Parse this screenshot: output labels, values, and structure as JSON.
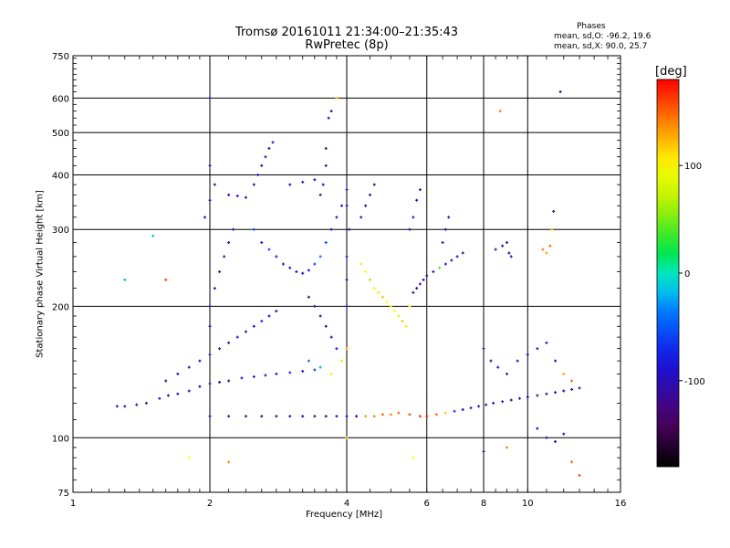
{
  "header": {
    "title_line1": "Tromsø 20161011 21:34:00–21:35:43",
    "title_line2": "RwPretec (8p)",
    "phases_heading": "Phases",
    "phases_o": "mean, sd,O:  -96.2, 19.6",
    "phases_x": "mean, sd,X:  90.0, 25.7"
  },
  "chart_data": {
    "type": "scatter",
    "title": "Tromsø 20161011 21:34:00–21:35:43 RwPretec (8p)",
    "xlabel": "Frequency [MHz]",
    "ylabel": "Stationary phase Virtual Height [km]",
    "x_scale": "log",
    "y_scale": "log",
    "xlim": [
      1,
      16
    ],
    "ylim": [
      75,
      750
    ],
    "x_ticks": [
      1,
      2,
      4,
      6,
      8,
      10,
      16
    ],
    "y_ticks": [
      75,
      100,
      200,
      300,
      400,
      500,
      600,
      750
    ],
    "grid": true,
    "colorbar": {
      "label": "[deg]",
      "range": [
        -180,
        180
      ],
      "ticks": [
        100,
        0,
        -100
      ],
      "colormap": "rainbow"
    },
    "series": [
      {
        "points": [
          [
            1.25,
            118,
            -110
          ],
          [
            1.3,
            118,
            -105
          ],
          [
            1.38,
            119,
            -100
          ],
          [
            1.45,
            120,
            -110
          ],
          [
            1.55,
            123,
            -100
          ],
          [
            1.62,
            125,
            -110
          ],
          [
            1.7,
            126,
            -95
          ],
          [
            1.8,
            128,
            -100
          ],
          [
            1.9,
            131,
            -110
          ],
          [
            2.0,
            133,
            -105
          ],
          [
            2.1,
            134,
            -95
          ],
          [
            2.2,
            135,
            -110
          ],
          [
            2.35,
            137,
            -90
          ],
          [
            2.5,
            138,
            -100
          ],
          [
            2.65,
            139,
            -80
          ],
          [
            2.8,
            140,
            -90
          ],
          [
            3.0,
            141,
            -70
          ],
          [
            3.2,
            142,
            -80
          ],
          [
            3.4,
            143,
            -60
          ],
          [
            1.6,
            135,
            -100
          ],
          [
            1.7,
            140,
            -105
          ],
          [
            1.8,
            145,
            -110
          ],
          [
            1.9,
            150,
            -100
          ],
          [
            2.0,
            155,
            -95
          ],
          [
            2.1,
            160,
            -110
          ],
          [
            2.2,
            165,
            -100
          ],
          [
            2.3,
            170,
            -80
          ],
          [
            2.4,
            175,
            -90
          ],
          [
            2.5,
            180,
            -100
          ],
          [
            2.6,
            185,
            -70
          ],
          [
            2.7,
            190,
            -85
          ],
          [
            2.8,
            195,
            -100
          ],
          [
            2.0,
            180,
            -110
          ],
          [
            2.0,
            200,
            -100
          ],
          [
            2.05,
            220,
            -105
          ],
          [
            2.1,
            240,
            -110
          ],
          [
            2.15,
            260,
            -100
          ],
          [
            2.2,
            280,
            -95
          ],
          [
            2.25,
            300,
            -100
          ],
          [
            1.95,
            320,
            -105
          ],
          [
            2.0,
            350,
            -110
          ],
          [
            2.05,
            380,
            -100
          ],
          [
            2.0,
            420,
            -105
          ],
          [
            2.0,
            600,
            -100
          ],
          [
            2.5,
            380,
            -110
          ],
          [
            2.55,
            400,
            -100
          ],
          [
            2.6,
            420,
            -105
          ],
          [
            2.65,
            440,
            -110
          ],
          [
            2.7,
            460,
            -100
          ],
          [
            2.75,
            475,
            -95
          ],
          [
            2.2,
            360,
            -110
          ],
          [
            2.3,
            358,
            -105
          ],
          [
            2.4,
            355,
            -100
          ],
          [
            2.5,
            300,
            -60
          ],
          [
            2.6,
            280,
            -80
          ],
          [
            2.7,
            270,
            -60
          ],
          [
            2.8,
            260,
            -90
          ],
          [
            2.9,
            250,
            -100
          ],
          [
            3.0,
            245,
            -110
          ],
          [
            3.1,
            240,
            -105
          ],
          [
            3.2,
            238,
            -100
          ],
          [
            3.3,
            242,
            -80
          ],
          [
            3.4,
            250,
            -60
          ],
          [
            3.5,
            260,
            -40
          ],
          [
            3.6,
            280,
            -60
          ],
          [
            3.7,
            300,
            -80
          ],
          [
            3.8,
            320,
            -100
          ],
          [
            3.9,
            340,
            -90
          ],
          [
            3.5,
            360,
            -105
          ],
          [
            3.55,
            380,
            -100
          ],
          [
            3.6,
            420,
            -110
          ],
          [
            3.6,
            460,
            -100
          ],
          [
            3.65,
            540,
            -105
          ],
          [
            3.7,
            560,
            -110
          ],
          [
            3.0,
            380,
            -100
          ],
          [
            3.2,
            385,
            -105
          ],
          [
            3.4,
            390,
            -100
          ],
          [
            3.3,
            210,
            -110
          ],
          [
            3.4,
            200,
            -100
          ],
          [
            3.5,
            190,
            -105
          ],
          [
            3.6,
            180,
            -110
          ],
          [
            3.7,
            170,
            -100
          ],
          [
            3.8,
            160,
            -95
          ],
          [
            3.3,
            150,
            -40
          ],
          [
            3.5,
            145,
            -20
          ],
          [
            3.7,
            140,
            90
          ],
          [
            3.9,
            150,
            110
          ],
          [
            4.0,
            160,
            130
          ],
          [
            2.0,
            112,
            -110
          ],
          [
            2.2,
            112,
            -105
          ],
          [
            2.4,
            112,
            -100
          ],
          [
            2.6,
            112,
            -110
          ],
          [
            2.8,
            112,
            -105
          ],
          [
            3.0,
            112,
            -100
          ],
          [
            3.2,
            112,
            -110
          ],
          [
            3.4,
            112,
            -105
          ],
          [
            3.6,
            112,
            -100
          ],
          [
            3.8,
            112,
            -110
          ],
          [
            4.0,
            112,
            -105
          ],
          [
            4.2,
            112,
            -100
          ],
          [
            4.4,
            112,
            130
          ],
          [
            4.6,
            112,
            140
          ],
          [
            4.8,
            113,
            150
          ],
          [
            5.0,
            113,
            140
          ],
          [
            5.2,
            114,
            150
          ],
          [
            5.5,
            113,
            155
          ],
          [
            5.8,
            112,
            165
          ],
          [
            6.0,
            112,
            170
          ],
          [
            6.3,
            113,
            150
          ],
          [
            6.6,
            114,
            120
          ],
          [
            6.9,
            115,
            -60
          ],
          [
            7.2,
            116,
            -100
          ],
          [
            7.5,
            117,
            -110
          ],
          [
            7.8,
            118,
            -100
          ],
          [
            8.1,
            119,
            -105
          ],
          [
            8.4,
            120,
            -110
          ],
          [
            8.8,
            121,
            -100
          ],
          [
            9.2,
            122,
            -105
          ],
          [
            9.6,
            123,
            -110
          ],
          [
            10.0,
            124,
            -100
          ],
          [
            10.5,
            125,
            -105
          ],
          [
            11.0,
            126,
            -110
          ],
          [
            11.5,
            127,
            -100
          ],
          [
            12.0,
            128,
            -90
          ],
          [
            12.5,
            129,
            -100
          ],
          [
            13.0,
            130,
            -105
          ],
          [
            4.0,
            200,
            -110
          ],
          [
            4.0,
            230,
            -100
          ],
          [
            4.0,
            260,
            -105
          ],
          [
            4.05,
            300,
            -110
          ],
          [
            4.0,
            340,
            -100
          ],
          [
            4.0,
            370,
            -105
          ],
          [
            4.3,
            250,
            110
          ],
          [
            4.4,
            240,
            100
          ],
          [
            4.5,
            230,
            120
          ],
          [
            4.6,
            220,
            90
          ],
          [
            4.7,
            215,
            110
          ],
          [
            4.8,
            210,
            120
          ],
          [
            4.9,
            205,
            100
          ],
          [
            4.3,
            320,
            -100
          ],
          [
            4.4,
            340,
            -110
          ],
          [
            4.5,
            360,
            -105
          ],
          [
            4.6,
            380,
            -100
          ],
          [
            5.0,
            200,
            110
          ],
          [
            5.1,
            195,
            100
          ],
          [
            5.2,
            190,
            80
          ],
          [
            5.3,
            185,
            120
          ],
          [
            5.4,
            180,
            110
          ],
          [
            5.5,
            200,
            100
          ],
          [
            5.6,
            215,
            -100
          ],
          [
            5.7,
            220,
            -110
          ],
          [
            5.8,
            225,
            -105
          ],
          [
            5.9,
            230,
            -100
          ],
          [
            6.0,
            235,
            -110
          ],
          [
            6.2,
            240,
            -100
          ],
          [
            6.4,
            245,
            40
          ],
          [
            6.6,
            250,
            -90
          ],
          [
            6.8,
            255,
            -100
          ],
          [
            7.0,
            260,
            -110
          ],
          [
            7.2,
            265,
            -105
          ],
          [
            5.5,
            300,
            -100
          ],
          [
            5.6,
            320,
            -110
          ],
          [
            5.7,
            350,
            -100
          ],
          [
            5.8,
            370,
            -105
          ],
          [
            6.5,
            280,
            -100
          ],
          [
            6.6,
            300,
            -110
          ],
          [
            6.7,
            320,
            -100
          ],
          [
            8.5,
            270,
            -110
          ],
          [
            8.8,
            275,
            -100
          ],
          [
            9.0,
            280,
            -105
          ],
          [
            9.1,
            265,
            -110
          ],
          [
            9.2,
            260,
            -100
          ],
          [
            10.8,
            270,
            140
          ],
          [
            11.0,
            265,
            130
          ],
          [
            11.2,
            275,
            150
          ],
          [
            11.3,
            300,
            120
          ],
          [
            11.4,
            330,
            -100
          ],
          [
            8.0,
            160,
            -110
          ],
          [
            8.3,
            150,
            -100
          ],
          [
            8.6,
            145,
            -105
          ],
          [
            9.0,
            140,
            -110
          ],
          [
            9.5,
            150,
            -100
          ],
          [
            10.0,
            155,
            -105
          ],
          [
            10.5,
            160,
            -100
          ],
          [
            11.0,
            165,
            -110
          ],
          [
            11.5,
            150,
            -100
          ],
          [
            12.0,
            140,
            130
          ],
          [
            12.5,
            135,
            150
          ],
          [
            10.5,
            105,
            -100
          ],
          [
            11.0,
            100,
            -110
          ],
          [
            11.5,
            98,
            -105
          ],
          [
            12.0,
            102,
            -100
          ],
          [
            1.6,
            230,
            160
          ],
          [
            1.5,
            290,
            -20
          ],
          [
            1.3,
            230,
            -20
          ],
          [
            2.2,
            88,
            140
          ],
          [
            1.8,
            90,
            100
          ],
          [
            3.8,
            600,
            120
          ],
          [
            4.0,
            100,
            120
          ],
          [
            8.7,
            560,
            140
          ],
          [
            11.8,
            620,
            -120
          ],
          [
            12.5,
            88,
            150
          ],
          [
            13.0,
            82,
            160
          ],
          [
            5.6,
            90,
            100
          ],
          [
            8.0,
            93,
            -100
          ],
          [
            9.0,
            95,
            140
          ]
        ]
      }
    ]
  }
}
